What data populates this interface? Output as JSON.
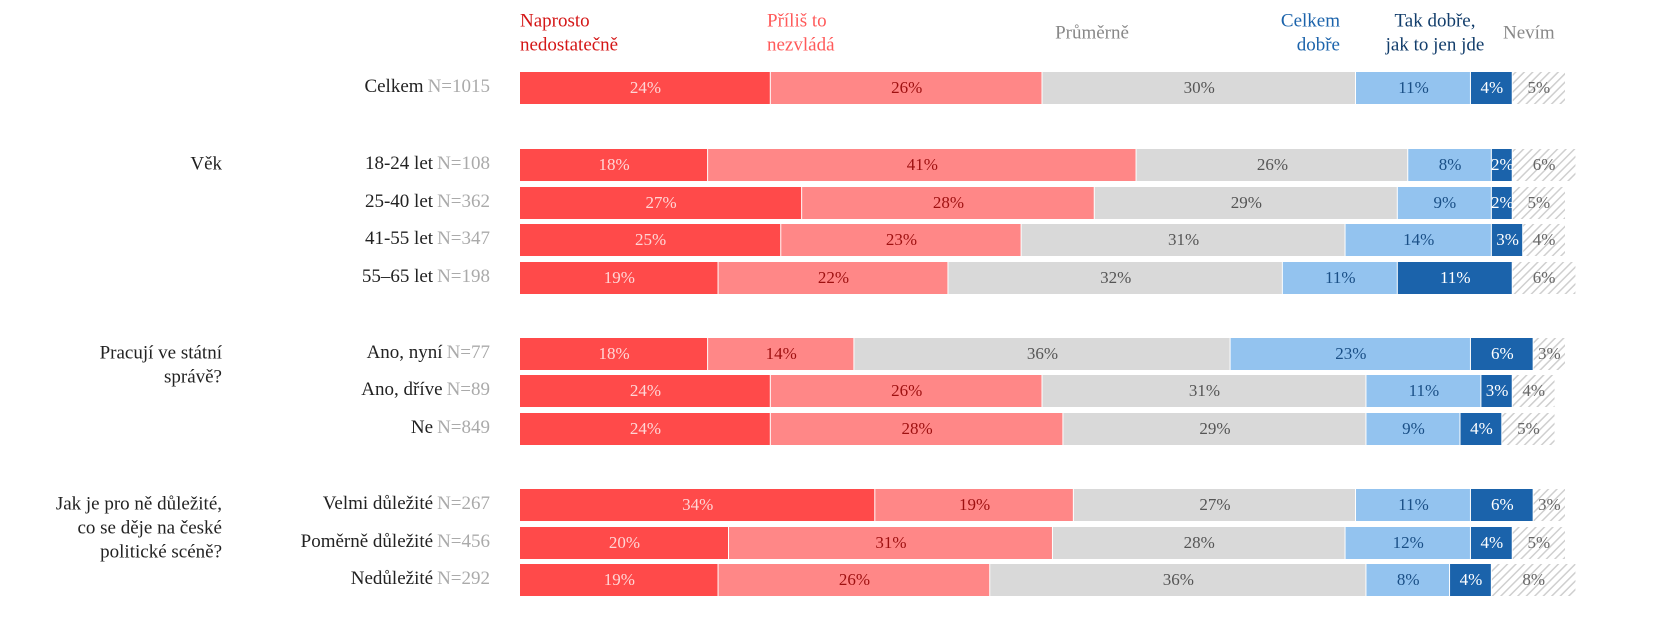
{
  "chart_data": {
    "type": "stacked-bar",
    "categories": [
      "Celkem",
      "18-24 let",
      "25-40 let",
      "41-55 let",
      "55–65 let",
      "Ano, nyní",
      "Ano, dříve",
      "Ne",
      "Velmi důležité",
      "Poměrně důležité",
      "Nedůležité"
    ],
    "n_labels": [
      "N=1015",
      "N=108",
      "N=362",
      "N=347",
      "N=198",
      "N=77",
      "N=89",
      "N=849",
      "N=267",
      "N=456",
      "N=292"
    ],
    "groups": [
      {
        "label": [
          "Věk"
        ]
      },
      {
        "label": [
          "Pracují ve státní",
          "správě?"
        ]
      },
      {
        "label": [
          "Jak je pro ně důležité,",
          "co se děje  na české",
          "politické scéně?"
        ]
      }
    ],
    "xlim": [
      0,
      100
    ],
    "series": [
      {
        "name": [
          "Naprosto",
          "nedostatečně"
        ],
        "color": "#ff4a4a",
        "label_color": "#ffd6d6",
        "values": [
          24,
          18,
          27,
          25,
          19,
          18,
          24,
          24,
          34,
          20,
          19
        ],
        "value_labels": [
          "24%",
          "18%",
          "27%",
          "25%",
          "19%",
          "18%",
          "24%",
          "24%",
          "34%",
          "20%",
          "19%"
        ]
      },
      {
        "name": [
          "Příliš to",
          "nezvládá"
        ],
        "color": "#ff8787",
        "label_color": "#9e1010",
        "values": [
          26,
          41,
          28,
          23,
          22,
          14,
          26,
          28,
          19,
          31,
          26
        ],
        "value_labels": [
          "26%",
          "41%",
          "28%",
          "23%",
          "22%",
          "14%",
          "26%",
          "28%",
          "19%",
          "31%",
          "26%"
        ]
      },
      {
        "name": [
          "Průměrně"
        ],
        "color": "#d9d9d9",
        "label_color": "#555555",
        "values": [
          30,
          26,
          29,
          31,
          32,
          36,
          31,
          29,
          27,
          28,
          36
        ],
        "value_labels": [
          "30%",
          "26%",
          "29%",
          "31%",
          "32%",
          "36%",
          "31%",
          "29%",
          "27%",
          "28%",
          "36%"
        ]
      },
      {
        "name": [
          "Celkem",
          "dobře"
        ],
        "color": "#93c3ef",
        "label_color": "#1a4f86",
        "values": [
          11,
          8,
          9,
          14,
          11,
          23,
          11,
          9,
          11,
          12,
          8
        ],
        "value_labels": [
          "11%",
          "8%",
          "9%",
          "14%",
          "11%",
          "23%",
          "11%",
          "9%",
          "11%",
          "12%",
          "8%"
        ]
      },
      {
        "name": [
          "Tak dobře,",
          "jak to jen jde"
        ],
        "color": "#1b63ab",
        "label_color": "#ffffff",
        "values": [
          4,
          2,
          2,
          3,
          11,
          6,
          3,
          4,
          6,
          4,
          4
        ],
        "value_labels": [
          "4%",
          "2%",
          "2%",
          "3%",
          "11%",
          "6%",
          "3%",
          "4%",
          "6%",
          "4%",
          "4%"
        ]
      },
      {
        "name": [
          "Nevím"
        ],
        "color": "#d9d9d9",
        "label_color": "#666666",
        "pattern": "hatch",
        "values": [
          5,
          6,
          5,
          4,
          6,
          3,
          4,
          5,
          3,
          5,
          8
        ],
        "value_labels": [
          "5%",
          "6%",
          "5%",
          "4%",
          "6%",
          "3%",
          "4%",
          "5%",
          "3%",
          "5%",
          "8%"
        ]
      }
    ]
  }
}
